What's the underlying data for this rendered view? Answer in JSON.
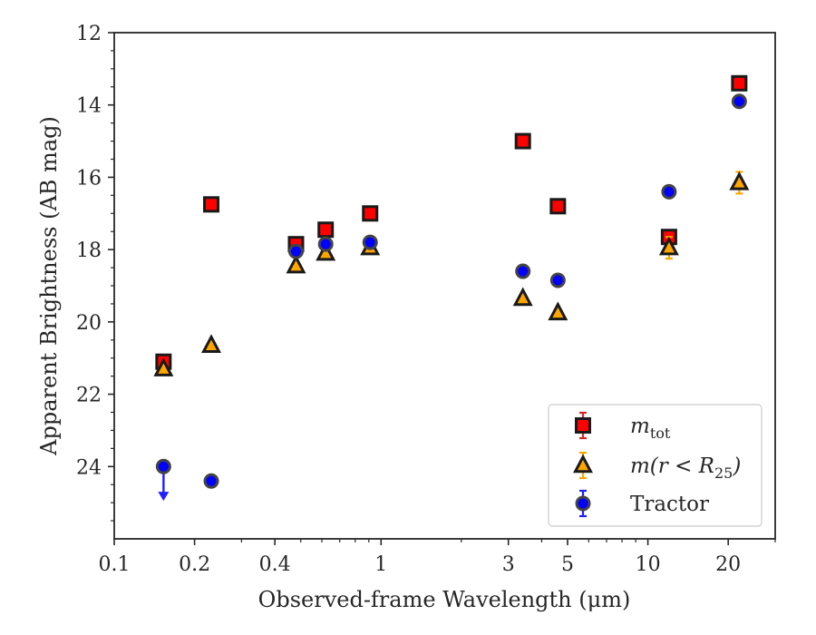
{
  "chart_data": {
    "type": "scatter",
    "title": "",
    "xlabel": "Observed-frame Wavelength (μm)",
    "ylabel": "Apparent Brightness (AB mag)",
    "xscale": "log",
    "xlim": [
      0.1,
      30
    ],
    "ylim": [
      26.0,
      12.0
    ],
    "y_inverted": true,
    "xticks": [
      {
        "value": 0.1,
        "label": "0.1"
      },
      {
        "value": 0.2,
        "label": "0.2"
      },
      {
        "value": 0.4,
        "label": "0.4"
      },
      {
        "value": 1,
        "label": "1"
      },
      {
        "value": 3,
        "label": "3"
      },
      {
        "value": 5,
        "label": "5"
      },
      {
        "value": 10,
        "label": "10"
      },
      {
        "value": 20,
        "label": "20"
      }
    ],
    "yticks": [
      {
        "value": 12,
        "label": "12"
      },
      {
        "value": 14,
        "label": "14"
      },
      {
        "value": 16,
        "label": "16"
      },
      {
        "value": 18,
        "label": "18"
      },
      {
        "value": 20,
        "label": "20"
      },
      {
        "value": 22,
        "label": "22"
      },
      {
        "value": 24,
        "label": "24"
      }
    ],
    "grid": false,
    "legend_position": "bottom-right",
    "series": [
      {
        "name": "m_tot",
        "marker": "square",
        "color": "#ff0000",
        "errcolor": "#d62728",
        "points": [
          {
            "x": 0.153,
            "y": 21.1,
            "err": 0.1
          },
          {
            "x": 0.231,
            "y": 16.75,
            "err": 0.05
          },
          {
            "x": 0.48,
            "y": 17.85,
            "err": 0.05
          },
          {
            "x": 0.62,
            "y": 17.45,
            "err": 0.05
          },
          {
            "x": 0.91,
            "y": 17.0,
            "err": 0.05
          },
          {
            "x": 3.4,
            "y": 15.0,
            "err": 0.05
          },
          {
            "x": 4.6,
            "y": 16.8,
            "err": 0.05
          },
          {
            "x": 12.0,
            "y": 17.65,
            "err": 0.1
          },
          {
            "x": 22.0,
            "y": 13.4,
            "err": 0.05
          }
        ]
      },
      {
        "name": "m(r < R25)",
        "marker": "triangle",
        "color": "#ffa500",
        "errcolor": "#ffa500",
        "points": [
          {
            "x": 0.153,
            "y": 21.3,
            "err": 0.1
          },
          {
            "x": 0.231,
            "y": 20.65,
            "err": 0.05
          },
          {
            "x": 0.48,
            "y": 18.45,
            "err": 0.05
          },
          {
            "x": 0.62,
            "y": 18.1,
            "err": 0.05
          },
          {
            "x": 0.91,
            "y": 17.95,
            "err": 0.05
          },
          {
            "x": 3.4,
            "y": 19.35,
            "err": 0.05
          },
          {
            "x": 4.6,
            "y": 19.75,
            "err": 0.1
          },
          {
            "x": 12.0,
            "y": 17.95,
            "err": 0.3
          },
          {
            "x": 22.0,
            "y": 16.15,
            "err": 0.3
          }
        ]
      },
      {
        "name": "Tractor",
        "marker": "circle",
        "color": "#0000ff",
        "errcolor": "#1f1fff",
        "points": [
          {
            "x": 0.153,
            "y": 24.0,
            "err": 0.0,
            "upper_limit": true
          },
          {
            "x": 0.231,
            "y": 24.4,
            "err": 0.05
          },
          {
            "x": 0.48,
            "y": 18.05,
            "err": 0.05
          },
          {
            "x": 0.62,
            "y": 17.85,
            "err": 0.05
          },
          {
            "x": 0.91,
            "y": 17.8,
            "err": 0.05
          },
          {
            "x": 3.4,
            "y": 18.6,
            "err": 0.05
          },
          {
            "x": 4.6,
            "y": 18.85,
            "err": 0.05
          },
          {
            "x": 12.0,
            "y": 16.4,
            "err": 0.05
          },
          {
            "x": 22.0,
            "y": 13.9,
            "err": 0.05
          }
        ]
      }
    ],
    "legend": [
      {
        "series": "m_tot",
        "text_main": "m",
        "text_sub": "tot"
      },
      {
        "series": "m(r < R25)",
        "text_main": "m(r < R",
        "text_sub": "25",
        "text_close": ")"
      },
      {
        "series": "Tractor",
        "text_main": "Tractor"
      }
    ]
  }
}
